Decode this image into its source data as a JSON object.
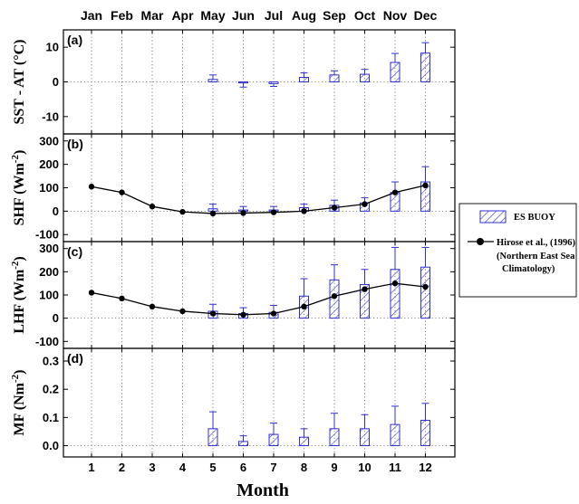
{
  "x_axis": {
    "label": "Month",
    "ticks": [
      "1",
      "2",
      "3",
      "4",
      "5",
      "6",
      "7",
      "8",
      "9",
      "10",
      "11",
      "12"
    ],
    "month_names": [
      "Jan",
      "Feb",
      "Mar",
      "Apr",
      "May",
      "Jun",
      "Jul",
      "Aug",
      "Sep",
      "Oct",
      "Nov",
      "Dec"
    ]
  },
  "legend": {
    "items": [
      {
        "label": "ES BUOY"
      },
      {
        "label": "Hirose et al., (1996)",
        "label2": "(Northern East Sea",
        "label3": "Climatology)"
      }
    ],
    "placement": "right, outside plot area"
  },
  "colors": {
    "buoy_bar": "#3030d0",
    "climatology_line": "#000000",
    "frame": "#000000"
  },
  "chart_data": [
    {
      "type": "bar",
      "panel": "(a)",
      "ylabel": "SST - AT (°C)",
      "ylim": [
        -15,
        15
      ],
      "yticks": [
        10,
        0,
        -10
      ],
      "x": [
        1,
        2,
        3,
        4,
        5,
        6,
        7,
        8,
        9,
        10,
        11,
        12
      ],
      "series": [
        {
          "name": "ES BUOY",
          "kind": "bar",
          "x": [
            5,
            6,
            7,
            8,
            9,
            10,
            11,
            12
          ],
          "values": [
            0.7,
            -0.3,
            -0.5,
            1.3,
            2.0,
            2.2,
            5.6,
            8.3
          ],
          "error": [
            1.3,
            1.2,
            0.8,
            1.3,
            1.2,
            1.4,
            2.6,
            3.0
          ]
        }
      ],
      "grid": "dotted vertical at each month"
    },
    {
      "type": "bar",
      "panel": "(b)",
      "ylabel": "SHF (Wm-2)",
      "ylim": [
        -130,
        330
      ],
      "yticks": [
        300,
        200,
        100,
        0,
        -100
      ],
      "series": [
        {
          "name": "ES BUOY",
          "kind": "bar",
          "x": [
            5,
            6,
            7,
            8,
            9,
            10,
            11,
            12
          ],
          "values": [
            10,
            5,
            5,
            15,
            25,
            35,
            80,
            125
          ],
          "error": [
            20,
            15,
            15,
            15,
            22,
            22,
            45,
            65
          ]
        },
        {
          "name": "Hirose et al., (1996)",
          "kind": "line",
          "x": [
            1,
            2,
            3,
            4,
            5,
            6,
            7,
            8,
            9,
            10,
            11,
            12
          ],
          "values": [
            105,
            80,
            20,
            -3,
            -10,
            -8,
            -5,
            0,
            15,
            30,
            80,
            110
          ]
        }
      ]
    },
    {
      "type": "bar",
      "panel": "(c)",
      "ylabel": "LHF (Wm-2)",
      "ylim": [
        -130,
        330
      ],
      "yticks": [
        300,
        200,
        100,
        0,
        -100
      ],
      "series": [
        {
          "name": "ES BUOY",
          "kind": "bar",
          "x": [
            5,
            6,
            7,
            8,
            9,
            10,
            11,
            12
          ],
          "values": [
            30,
            20,
            25,
            95,
            165,
            145,
            210,
            220
          ],
          "error": [
            30,
            25,
            30,
            75,
            65,
            65,
            95,
            85
          ]
        },
        {
          "name": "Hirose et al., (1996)",
          "kind": "line",
          "x": [
            1,
            2,
            3,
            4,
            5,
            6,
            7,
            8,
            9,
            10,
            11,
            12
          ],
          "values": [
            110,
            85,
            50,
            30,
            20,
            15,
            20,
            50,
            95,
            125,
            150,
            135
          ]
        }
      ]
    },
    {
      "type": "bar",
      "panel": "(d)",
      "ylabel": "MF (Nm-2)",
      "ylim": [
        -0.04,
        0.345
      ],
      "yticks": [
        0.3,
        0.2,
        0.1,
        0.0
      ],
      "ytick_labels": [
        "0.3",
        "0.2",
        "0.1",
        "0.0"
      ],
      "series": [
        {
          "name": "ES BUOY",
          "kind": "bar",
          "x": [
            5,
            6,
            7,
            8,
            9,
            10,
            11,
            12
          ],
          "values": [
            0.06,
            0.015,
            0.04,
            0.03,
            0.06,
            0.06,
            0.075,
            0.09
          ],
          "error": [
            0.06,
            0.02,
            0.04,
            0.03,
            0.055,
            0.05,
            0.065,
            0.06
          ]
        }
      ]
    }
  ]
}
